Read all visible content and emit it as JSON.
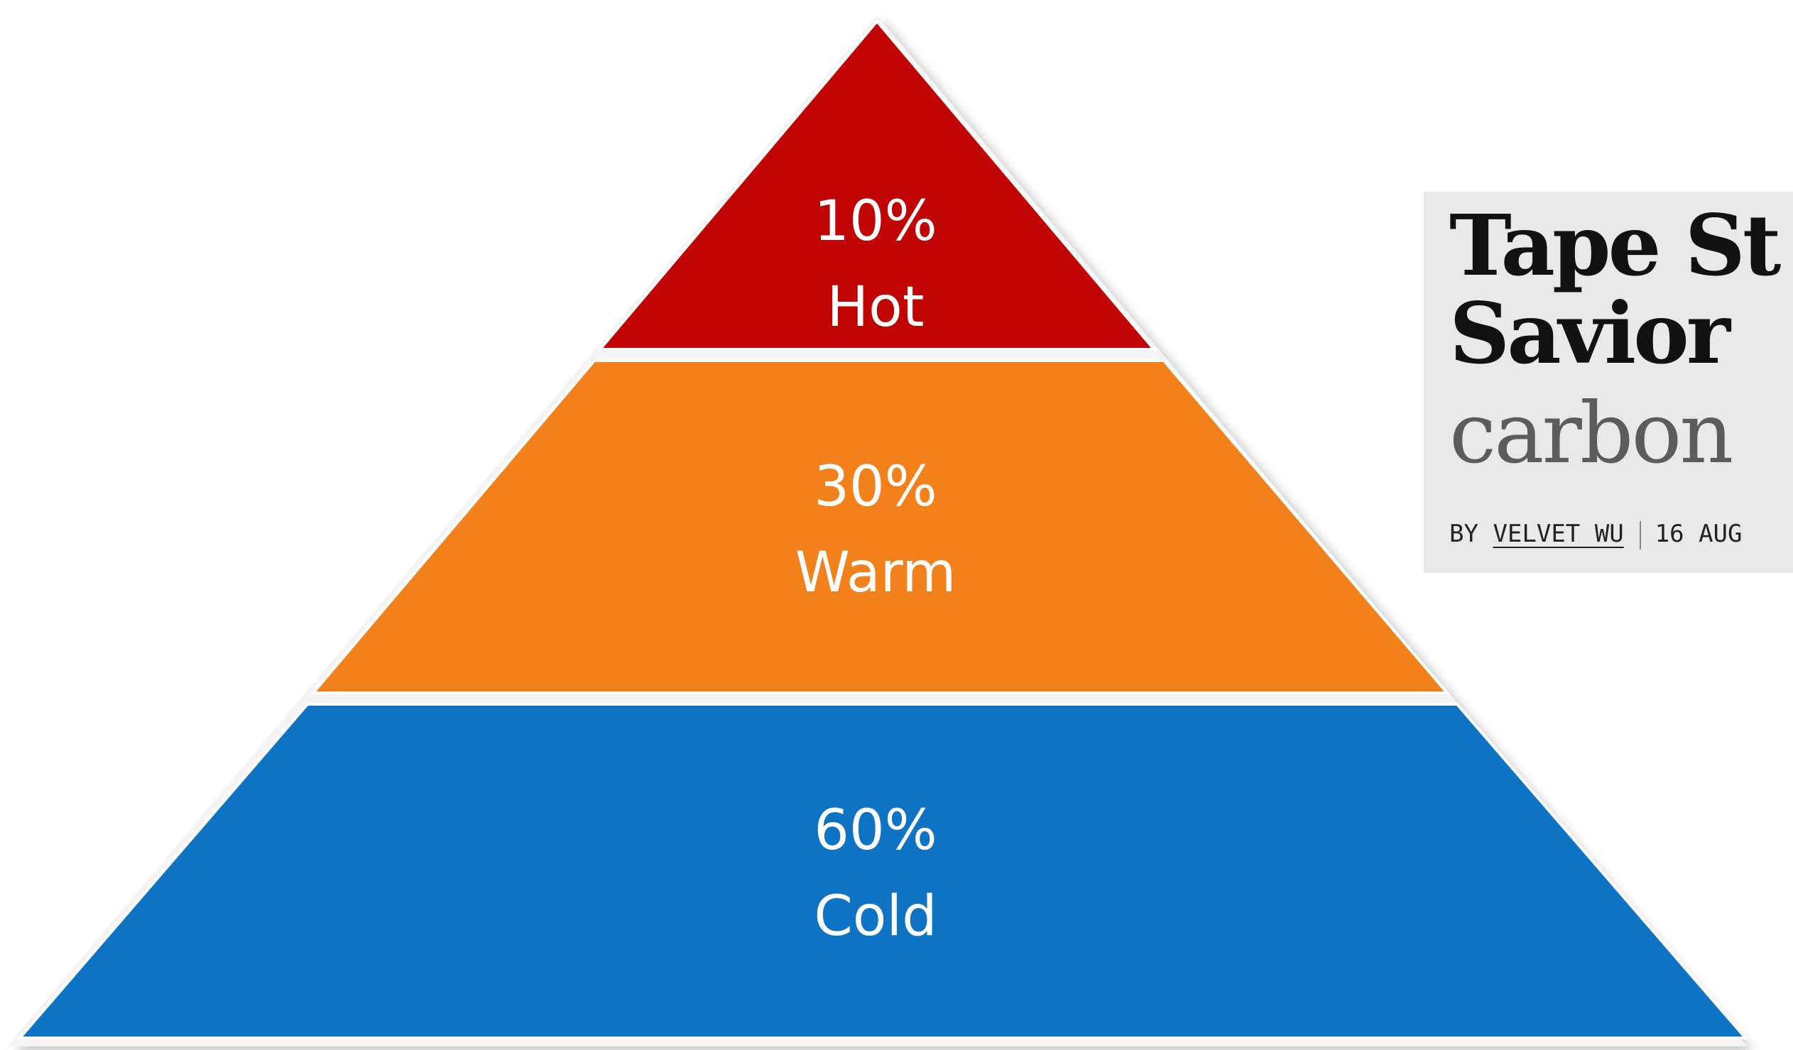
{
  "pyramid": {
    "tiers": [
      {
        "percent": "10%",
        "label": "Hot",
        "color": "#bf0403"
      },
      {
        "percent": "30%",
        "label": "Warm",
        "color": "#f2811b"
      },
      {
        "percent": "60%",
        "label": "Cold",
        "color": "#0f73c4"
      }
    ]
  },
  "article": {
    "headline_line1": "Tape St",
    "headline_line2": "Savior",
    "dek": "carbon",
    "byline_prefix": "BY",
    "author": "VELVET WU",
    "date": "16 AUG"
  }
}
